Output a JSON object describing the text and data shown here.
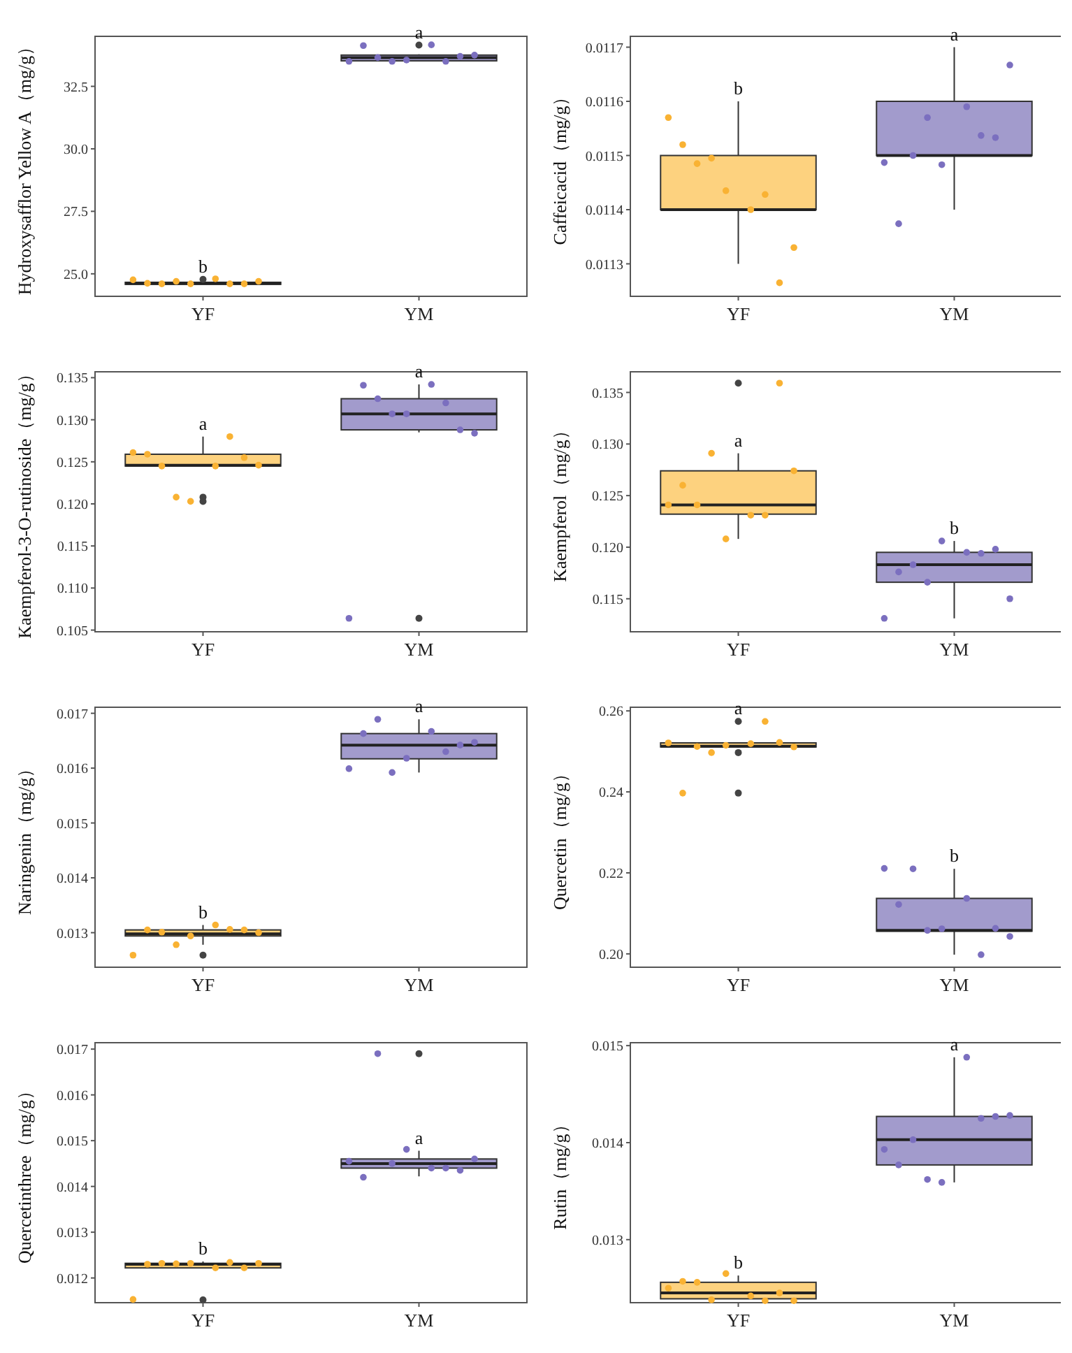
{
  "chart_data": [
    {
      "type": "box",
      "ylabel": "Hydroxysafflor Yellow A（mg/g）",
      "categories": [
        "YF",
        "YM"
      ],
      "colors": [
        "#fdd27f",
        "#a29bcc"
      ],
      "ylim": [
        24.1,
        34.5
      ],
      "yticks": [
        {
          "value": 25,
          "label": "25.0"
        },
        27.5,
        {
          "value": 30,
          "label": "30.0"
        },
        32.5
      ],
      "boxes": [
        {
          "low": 24.58,
          "q1": 24.58,
          "median": 24.62,
          "q3": 24.66,
          "high": 24.66,
          "outliers": [
            24.78
          ]
        },
        {
          "low": 33.5,
          "q1": 33.52,
          "median": 33.65,
          "q3": 33.75,
          "high": 33.78,
          "outliers": [
            34.15
          ]
        }
      ],
      "series": [
        {
          "type": "scatter",
          "color": "#f9b233",
          "x": [
            "YF",
            "YF",
            "YF",
            "YF",
            "YF",
            "YF",
            "YF",
            "YF",
            "YF"
          ],
          "values": [
            24.6,
            24.8,
            24.7,
            24.6,
            24.6,
            24.6,
            24.62,
            24.7,
            24.76
          ]
        },
        {
          "type": "scatter",
          "color": "#7b6fbf",
          "x": [
            "YM",
            "YM",
            "YM",
            "YM",
            "YM",
            "YM",
            "YM",
            "YM",
            "YM"
          ],
          "values": [
            33.55,
            34.16,
            33.5,
            33.5,
            33.65,
            33.7,
            34.13,
            33.75,
            33.5
          ]
        }
      ],
      "annotations": [
        {
          "text": "b",
          "x": "YF",
          "y": 24.78
        },
        {
          "text": "a",
          "x": "YM",
          "y": 33.78
        }
      ]
    },
    {
      "type": "box",
      "ylabel": "Caffeicacid（mg/g）",
      "categories": [
        "YF",
        "YM"
      ],
      "colors": [
        "#fdd27f",
        "#a29bcc"
      ],
      "ylim": [
        0.01124,
        0.01172
      ],
      "yticks": [
        0.0113,
        0.0114,
        0.0115,
        0.0116,
        0.0117
      ],
      "boxes": [
        {
          "low": 0.0113,
          "q1": 0.0114,
          "median": 0.0114,
          "q3": 0.0115,
          "high": 0.0116
        },
        {
          "low": 0.0114,
          "q1": 0.0115,
          "median": 0.0115,
          "q3": 0.0116,
          "high": 0.0117
        }
      ],
      "series": [
        {
          "type": "scatter",
          "color": "#f9b233",
          "x": [
            "YF",
            "YF",
            "YF",
            "YF",
            "YF",
            "YF",
            "YF",
            "YF",
            "YF"
          ],
          "values": [
            0.011435,
            0.0114,
            0.011495,
            0.011428,
            0.011485,
            0.011265,
            0.01152,
            0.01133,
            0.01157
          ]
        },
        {
          "type": "scatter",
          "color": "#7b6fbf",
          "x": [
            "YM",
            "YM",
            "YM",
            "YM",
            "YM",
            "YM",
            "YM",
            "YM",
            "YM"
          ],
          "values": [
            0.011483,
            0.01159,
            0.01157,
            0.011537,
            0.0115,
            0.011533,
            0.011374,
            0.011667,
            0.011487
          ]
        }
      ],
      "annotations": [
        {
          "text": "b",
          "x": "YF",
          "y": 0.0116
        },
        {
          "text": "a",
          "x": "YM",
          "y": 0.0117
        }
      ]
    },
    {
      "type": "box",
      "ylabel": "Kaempferol-3-O-rutinoside（mg/g）",
      "categories": [
        "YF",
        "YM"
      ],
      "colors": [
        "#fdd27f",
        "#a29bcc"
      ],
      "ylim": [
        0.1048,
        0.1357
      ],
      "yticks": [
        0.105,
        {
          "value": 0.11,
          "label": "0.110"
        },
        0.115,
        {
          "value": 0.12,
          "label": "0.120"
        },
        0.125,
        {
          "value": 0.13,
          "label": "0.130"
        },
        0.135
      ],
      "boxes": [
        {
          "low": 0.1245,
          "q1": 0.1245,
          "median": 0.1246,
          "q3": 0.1259,
          "high": 0.128,
          "outliers": [
            0.1208,
            0.1203
          ]
        },
        {
          "low": 0.1285,
          "q1": 0.1288,
          "median": 0.1307,
          "q3": 0.1325,
          "high": 0.1342,
          "outliers": [
            0.1064
          ]
        }
      ],
      "series": [
        {
          "type": "scatter",
          "color": "#f9b233",
          "x": [
            "YF",
            "YF",
            "YF",
            "YF",
            "YF",
            "YF",
            "YF",
            "YF",
            "YF"
          ],
          "values": [
            0.1203,
            0.1245,
            0.1208,
            0.128,
            0.1245,
            0.1255,
            0.1259,
            0.1246,
            0.1261
          ]
        },
        {
          "type": "scatter",
          "color": "#7b6fbf",
          "x": [
            "YM",
            "YM",
            "YM",
            "YM",
            "YM",
            "YM",
            "YM",
            "YM",
            "YM"
          ],
          "values": [
            0.1307,
            0.1342,
            0.1307,
            0.132,
            0.1325,
            0.1288,
            0.1341,
            0.1284,
            0.1064
          ]
        }
      ],
      "annotations": [
        {
          "text": "a",
          "x": "YF",
          "y": 0.128
        },
        {
          "text": "a",
          "x": "YM",
          "y": 0.1342
        }
      ]
    },
    {
      "type": "box",
      "ylabel": "Kaempferol（mg/g）",
      "categories": [
        "YF",
        "YM"
      ],
      "colors": [
        "#fdd27f",
        "#a29bcc"
      ],
      "ylim": [
        0.1118,
        0.137
      ],
      "yticks": [
        0.115,
        {
          "value": 0.12,
          "label": "0.120"
        },
        0.125,
        {
          "value": 0.13,
          "label": "0.130"
        },
        0.135
      ],
      "boxes": [
        {
          "low": 0.1208,
          "q1": 0.1232,
          "median": 0.1241,
          "q3": 0.1274,
          "high": 0.1291,
          "outliers": [
            0.1359
          ]
        },
        {
          "low": 0.1131,
          "q1": 0.1166,
          "median": 0.1183,
          "q3": 0.1195,
          "high": 0.1206
        }
      ],
      "series": [
        {
          "type": "scatter",
          "color": "#f9b233",
          "x": [
            "YF",
            "YF",
            "YF",
            "YF",
            "YF",
            "YF",
            "YF",
            "YF",
            "YF"
          ],
          "values": [
            0.1208,
            0.1231,
            0.1291,
            0.1231,
            0.1241,
            0.1359,
            0.126,
            0.1274,
            0.1241
          ]
        },
        {
          "type": "scatter",
          "color": "#7b6fbf",
          "x": [
            "YM",
            "YM",
            "YM",
            "YM",
            "YM",
            "YM",
            "YM",
            "YM",
            "YM"
          ],
          "values": [
            0.1206,
            0.1195,
            0.1166,
            0.1194,
            0.1183,
            0.1198,
            0.1176,
            0.115,
            0.1131
          ]
        }
      ],
      "annotations": [
        {
          "text": "a",
          "x": "YF",
          "y": 0.1291
        },
        {
          "text": "b",
          "x": "YM",
          "y": 0.1206
        }
      ]
    },
    {
      "type": "box",
      "ylabel": "Naringenin（mg/g）",
      "categories": [
        "YF",
        "YM"
      ],
      "colors": [
        "#fdd27f",
        "#a29bcc"
      ],
      "ylim": [
        0.01237,
        0.01711
      ],
      "yticks": [
        0.013,
        0.014,
        0.015,
        0.016,
        0.017
      ],
      "boxes": [
        {
          "low": 0.01278,
          "q1": 0.01294,
          "median": 0.01298,
          "q3": 0.01305,
          "high": 0.01314,
          "outliers": [
            0.01259
          ]
        },
        {
          "low": 0.01592,
          "q1": 0.01617,
          "median": 0.01642,
          "q3": 0.01663,
          "high": 0.01689
        }
      ],
      "series": [
        {
          "type": "scatter",
          "color": "#f9b233",
          "x": [
            "YF",
            "YF",
            "YF",
            "YF",
            "YF",
            "YF",
            "YF",
            "YF",
            "YF"
          ],
          "values": [
            0.01294,
            0.01314,
            0.01278,
            0.01306,
            0.01301,
            0.01305,
            0.01305,
            0.013,
            0.01259
          ]
        },
        {
          "type": "scatter",
          "color": "#7b6fbf",
          "x": [
            "YM",
            "YM",
            "YM",
            "YM",
            "YM",
            "YM",
            "YM",
            "YM",
            "YM"
          ],
          "values": [
            0.01618,
            0.01667,
            0.01592,
            0.0163,
            0.01689,
            0.01642,
            0.01663,
            0.01647,
            0.01599
          ]
        }
      ],
      "annotations": [
        {
          "text": "b",
          "x": "YF",
          "y": 0.01314
        },
        {
          "text": "a",
          "x": "YM",
          "y": 0.01689
        }
      ]
    },
    {
      "type": "box",
      "ylabel": "Quercetin（mg/g）",
      "categories": [
        "YF",
        "YM"
      ],
      "colors": [
        "#fdd27f",
        "#a29bcc"
      ],
      "ylim": [
        0.1967,
        0.2609
      ],
      "yticks": [
        {
          "value": 0.2,
          "label": "0.20"
        },
        0.22,
        0.24,
        0.26
      ],
      "boxes": [
        {
          "low": 0.251,
          "q1": 0.2511,
          "median": 0.2513,
          "q3": 0.2521,
          "high": 0.2522,
          "outliers": [
            0.2574,
            0.2497,
            0.2397
          ]
        },
        {
          "low": 0.1998,
          "q1": 0.2056,
          "median": 0.2058,
          "q3": 0.2137,
          "high": 0.221
        }
      ],
      "series": [
        {
          "type": "scatter",
          "color": "#f9b233",
          "x": [
            "YF",
            "YF",
            "YF",
            "YF",
            "YF",
            "YF",
            "YF",
            "YF",
            "YF"
          ],
          "values": [
            0.2515,
            0.2519,
            0.2497,
            0.2574,
            0.2512,
            0.2522,
            0.2397,
            0.2511,
            0.2521
          ]
        },
        {
          "type": "scatter",
          "color": "#7b6fbf",
          "x": [
            "YM",
            "YM",
            "YM",
            "YM",
            "YM",
            "YM",
            "YM",
            "YM",
            "YM"
          ],
          "values": [
            0.2062,
            0.2137,
            0.2058,
            0.1998,
            0.221,
            0.2063,
            0.2122,
            0.2043,
            0.2211
          ]
        }
      ],
      "annotations": [
        {
          "text": "a",
          "x": "YF",
          "y": 0.2522
        },
        {
          "text": "b",
          "x": "YM",
          "y": 0.221
        }
      ]
    },
    {
      "type": "box",
      "ylabel": "Quercetinthree（mg/g）",
      "categories": [
        "YF",
        "YM"
      ],
      "colors": [
        "#fdd27f",
        "#a29bcc"
      ],
      "ylim": [
        0.01146,
        0.01714
      ],
      "yticks": [
        0.012,
        0.013,
        0.014,
        0.015,
        0.016,
        0.017
      ],
      "boxes": [
        {
          "low": 0.01222,
          "q1": 0.01222,
          "median": 0.0123,
          "q3": 0.01232,
          "high": 0.01236,
          "outliers": [
            0.01152
          ]
        },
        {
          "low": 0.01422,
          "q1": 0.0144,
          "median": 0.0145,
          "q3": 0.0146,
          "high": 0.01478,
          "outliers": [
            0.0169
          ]
        }
      ],
      "series": [
        {
          "type": "scatter",
          "color": "#f9b233",
          "x": [
            "YF",
            "YF",
            "YF",
            "YF",
            "YF",
            "YF",
            "YF",
            "YF",
            "YF"
          ],
          "values": [
            0.01232,
            0.01222,
            0.01231,
            0.01234,
            0.01232,
            0.01222,
            0.0123,
            0.01232,
            0.01153
          ]
        },
        {
          "type": "scatter",
          "color": "#7b6fbf",
          "x": [
            "YM",
            "YM",
            "YM",
            "YM",
            "YM",
            "YM",
            "YM",
            "YM",
            "YM"
          ],
          "values": [
            0.01481,
            0.0144,
            0.0145,
            0.0144,
            0.0169,
            0.01435,
            0.0142,
            0.0146,
            0.01455
          ]
        }
      ],
      "annotations": [
        {
          "text": "b",
          "x": "YF",
          "y": 0.01236
        },
        {
          "text": "a",
          "x": "YM",
          "y": 0.01478
        }
      ]
    },
    {
      "type": "box",
      "ylabel": "Rutin（mg/g）",
      "categories": [
        "YF",
        "YM"
      ],
      "colors": [
        "#fdd27f",
        "#a29bcc"
      ],
      "ylim": [
        0.01235,
        0.01503
      ],
      "yticks": [
        0.013,
        0.014,
        0.015
      ],
      "boxes": [
        {
          "low": 0.01239,
          "q1": 0.01239,
          "median": 0.01245,
          "q3": 0.01256,
          "high": 0.01263
        },
        {
          "low": 0.01359,
          "q1": 0.01377,
          "median": 0.01403,
          "q3": 0.01427,
          "high": 0.01488
        }
      ],
      "series": [
        {
          "type": "scatter",
          "color": "#f9b233",
          "x": [
            "YF",
            "YF",
            "YF",
            "YF",
            "YF",
            "YF",
            "YF",
            "YF",
            "YF"
          ],
          "values": [
            0.01265,
            0.01242,
            0.01238,
            0.01237,
            0.01256,
            0.01245,
            0.01257,
            0.01237,
            0.0125
          ]
        },
        {
          "type": "scatter",
          "color": "#7b6fbf",
          "x": [
            "YM",
            "YM",
            "YM",
            "YM",
            "YM",
            "YM",
            "YM",
            "YM",
            "YM"
          ],
          "values": [
            0.01359,
            0.01488,
            0.01362,
            0.01425,
            0.01403,
            0.01427,
            0.01377,
            0.01428,
            0.01393
          ]
        }
      ],
      "annotations": [
        {
          "text": "b",
          "x": "YF",
          "y": 0.01263
        },
        {
          "text": "a",
          "x": "YM",
          "y": 0.01488
        }
      ]
    }
  ]
}
